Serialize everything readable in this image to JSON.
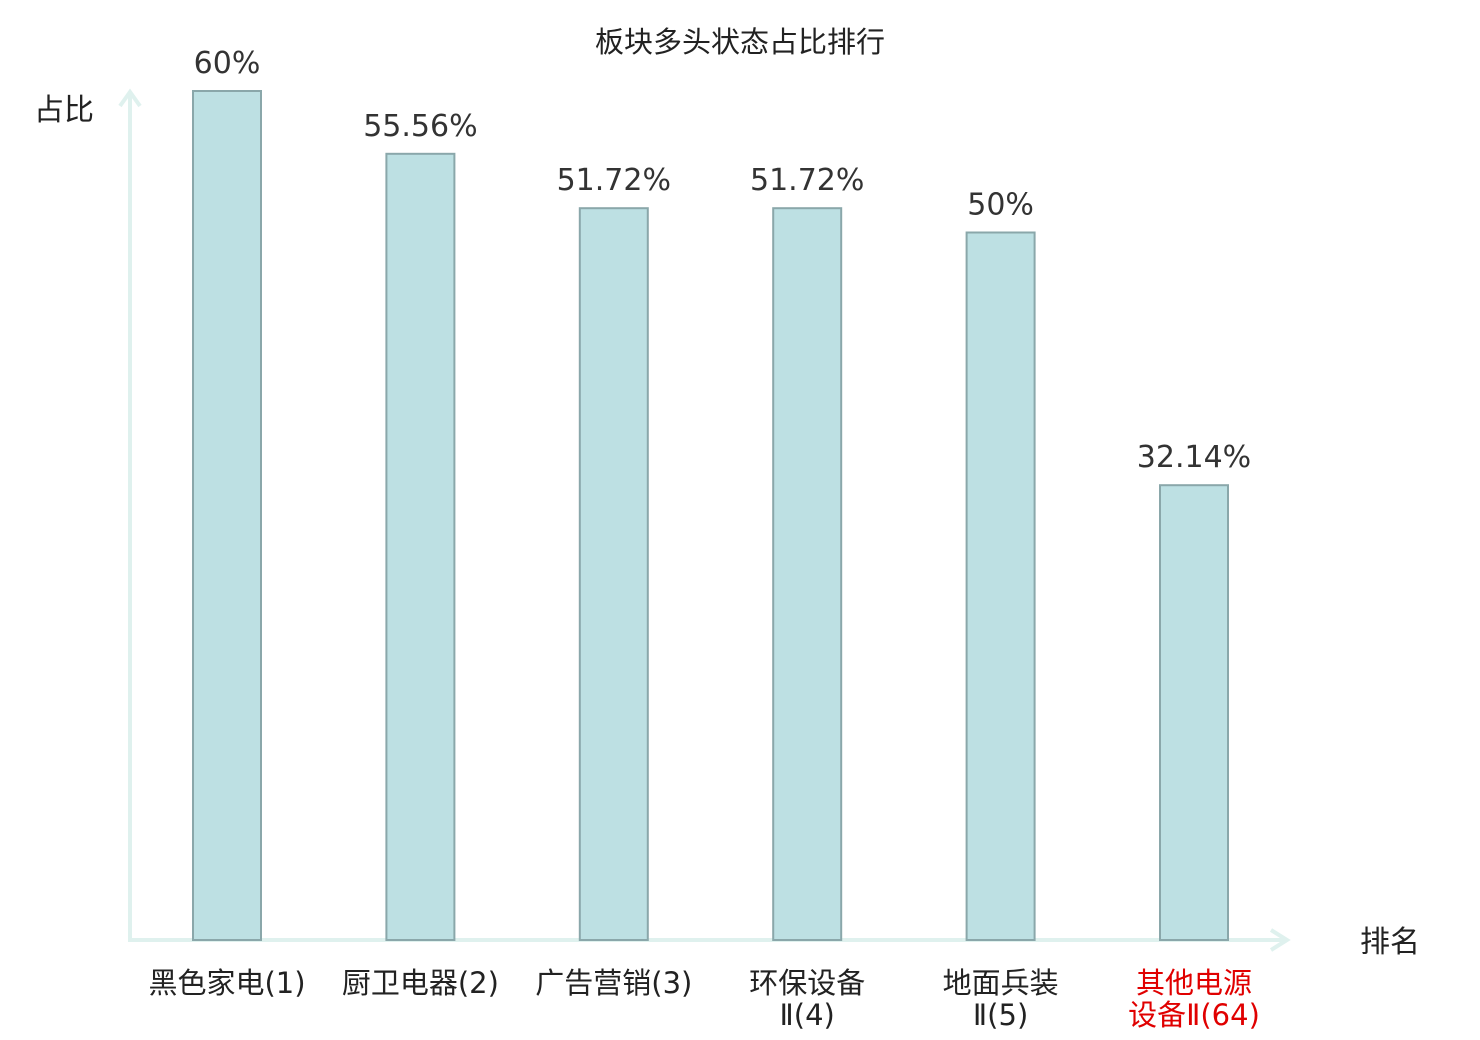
{
  "chart_data": {
    "type": "bar",
    "title": "板块多头状态占比排行",
    "ylabel": "占比",
    "xlabel": "排名",
    "categories": [
      [
        "黑色家电(1)"
      ],
      [
        "厨卫电器(2)"
      ],
      [
        "广告营销(3)"
      ],
      [
        "环保设备",
        "Ⅱ(4)"
      ],
      [
        "地面兵装",
        "Ⅱ(5)"
      ],
      [
        "其他电源",
        "设备Ⅱ(64)"
      ]
    ],
    "values": [
      60,
      55.56,
      51.72,
      51.72,
      50,
      32.14
    ],
    "value_labels": [
      "60%",
      "55.56%",
      "51.72%",
      "51.72%",
      "50%",
      "32.14%"
    ],
    "highlight_index": 5,
    "ylim": [
      0,
      60
    ],
    "grid": false,
    "colors": {
      "bar_fill": "#bde0e3",
      "bar_stroke": "#8aa7aa",
      "axis": "#dff1ee",
      "highlight_label": "#e00000"
    }
  }
}
